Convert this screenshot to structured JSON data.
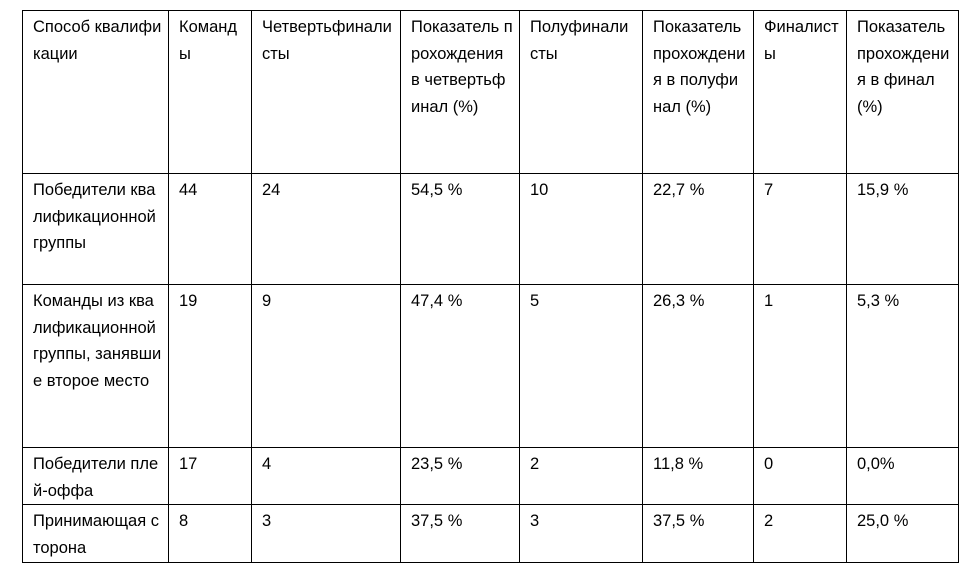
{
  "table": {
    "header": [
      "Способ квалификации",
      "Команды",
      "Четвертьфиналисты",
      "Показатель прохождения в четвертьфинал (%)",
      "Полуфиналисты",
      "Показатель прохождения в полуфинал (%)",
      "Финалисты",
      "Показатель прохождения в финал (%)"
    ],
    "rows": [
      [
        "Победители квалификационной группы",
        "44",
        "24",
        "54,5 %",
        "10",
        "22,7 %",
        "7",
        "15,9 %"
      ],
      [
        "Команды из квалификационной группы, занявшие второе место",
        "19",
        "9",
        "47,4 %",
        "5",
        "26,3 %",
        "1",
        "5,3 %"
      ],
      [
        "Победители плей-оффа",
        "17",
        "4",
        "23,5 %",
        "2",
        "11,8 %",
        "0",
        "0,0%"
      ],
      [
        "Принимающая сторона",
        "8",
        "3",
        "37,5 %",
        "3",
        "37,5 %",
        "2",
        "25,0 %"
      ]
    ]
  }
}
